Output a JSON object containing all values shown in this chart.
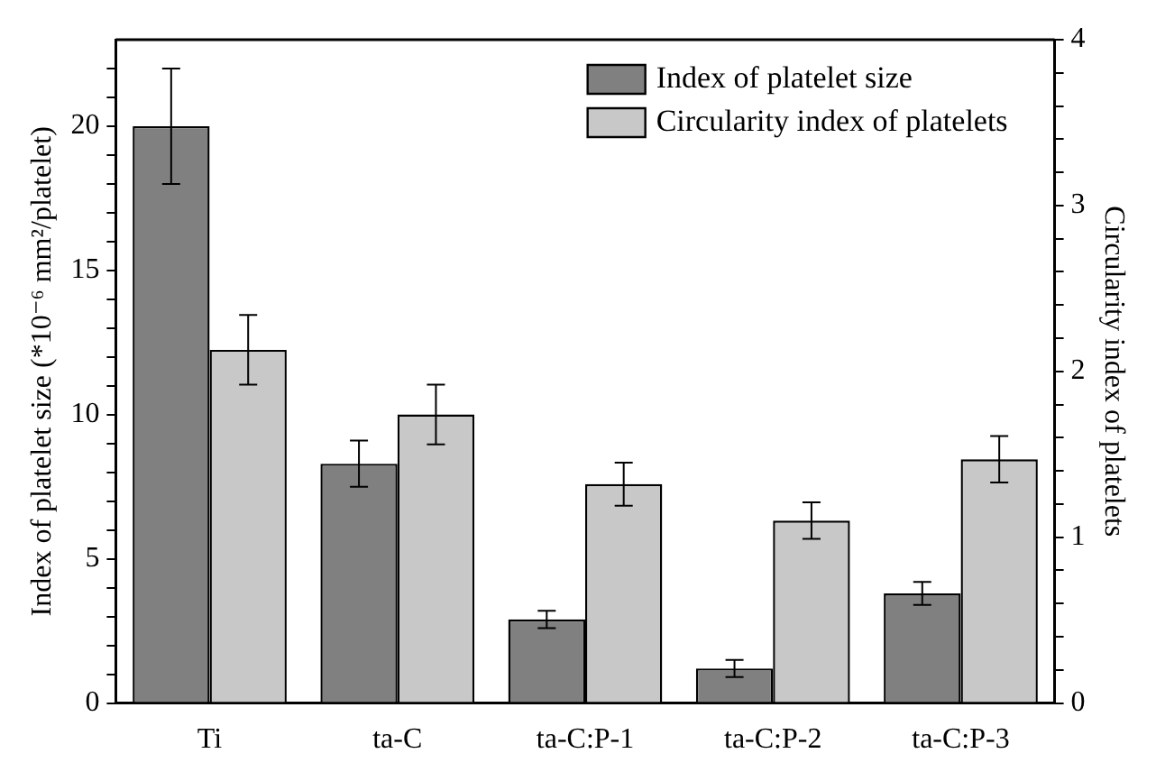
{
  "chart_data": {
    "type": "bar",
    "categories": [
      "Ti",
      "ta-C",
      "ta-C:P-1",
      "ta-C:P-2",
      "ta-C:P-3"
    ],
    "series": [
      {
        "name": "Index of platelet size",
        "color": "#808080",
        "values": [
          20,
          8.3,
          2.9,
          1.2,
          3.8
        ],
        "errors": [
          2,
          0.8,
          0.3,
          0.3,
          0.4
        ]
      },
      {
        "name": "Circularity index of platelets",
        "color": "#c8c8c8",
        "axis": "y2",
        "values": [
          2.13,
          1.74,
          1.32,
          1.1,
          1.47
        ],
        "errors": [
          0.21,
          0.18,
          0.13,
          0.11,
          0.14
        ]
      }
    ],
    "ylabel": "Index of platelet size (*10⁻⁶ mm²/platelet)",
    "y2label": "Circularity index of platelets",
    "ylim": [
      0,
      23
    ],
    "yticks": [
      0,
      {
        "value": 1,
        "label": null
      },
      {
        "value": 2,
        "label": null
      },
      {
        "value": 3,
        "label": null
      },
      {
        "value": 4,
        "label": null
      },
      5,
      {
        "value": 6,
        "label": null
      },
      {
        "value": 7,
        "label": null
      },
      {
        "value": 8,
        "label": null
      },
      {
        "value": 9,
        "label": null
      },
      10,
      {
        "value": 11,
        "label": null
      },
      {
        "value": 12,
        "label": null
      },
      {
        "value": 13,
        "label": null
      },
      {
        "value": 14,
        "label": null
      },
      15,
      {
        "value": 16,
        "label": null
      },
      {
        "value": 17,
        "label": null
      },
      {
        "value": 18,
        "label": null
      },
      {
        "value": 19,
        "label": null
      },
      20,
      {
        "value": 21,
        "label": null
      },
      {
        "value": 22,
        "label": null
      }
    ],
    "y2lim": [
      0,
      4
    ],
    "y2ticks": [
      0,
      {
        "value": 0.2,
        "label": null
      },
      {
        "value": 0.4,
        "label": null
      },
      {
        "value": 0.6,
        "label": null
      },
      {
        "value": 0.8,
        "label": null
      },
      1,
      {
        "value": 1.2,
        "label": null
      },
      {
        "value": 1.4,
        "label": null
      },
      {
        "value": 1.6,
        "label": null
      },
      {
        "value": 1.8,
        "label": null
      },
      2,
      {
        "value": 2.2,
        "label": null
      },
      {
        "value": 2.4,
        "label": null
      },
      {
        "value": 2.6,
        "label": null
      },
      {
        "value": 2.8,
        "label": null
      },
      3,
      {
        "value": 3.2,
        "label": null
      },
      {
        "value": 3.4,
        "label": null
      },
      {
        "value": 3.6,
        "label": null
      },
      {
        "value": 3.8,
        "label": null
      },
      4
    ],
    "grid": false,
    "legend": "top right"
  }
}
